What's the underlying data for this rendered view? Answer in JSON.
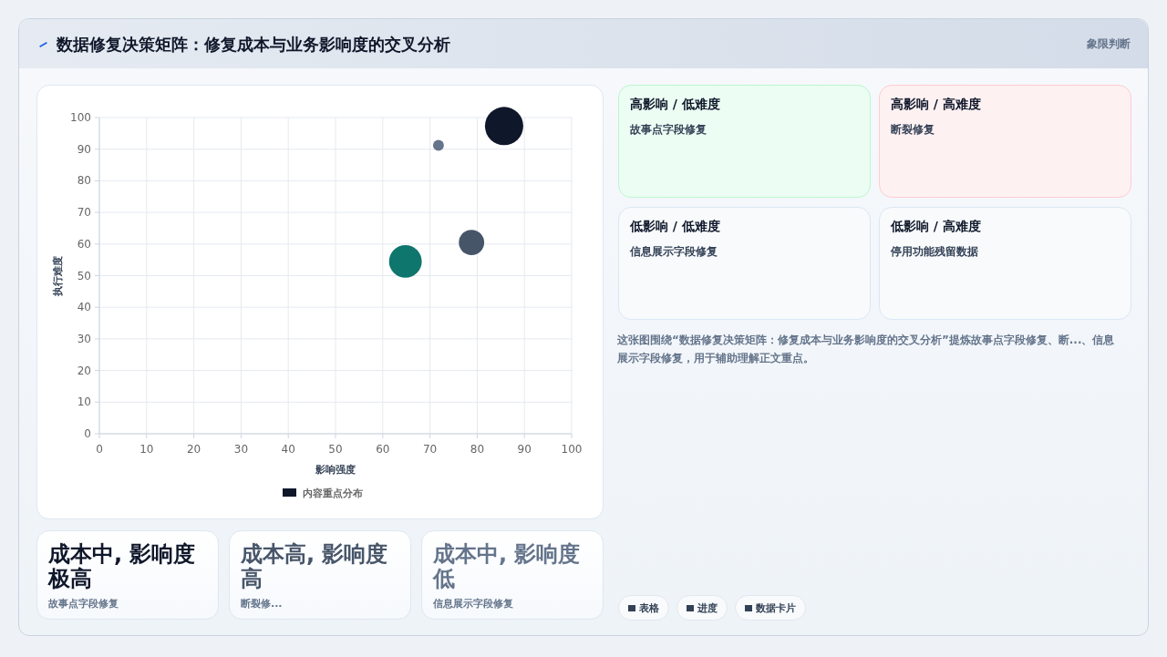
{
  "chart_data": [
    {
      "type": "bubble",
      "title": "数据修复决策矩阵：修复成本与业务影响度的交叉分析",
      "xlabel": "影响强度",
      "ylabel": "执行难度",
      "xlim": [
        0,
        100
      ],
      "ylim": [
        0,
        100
      ],
      "xticks": [
        0,
        10,
        20,
        30,
        40,
        50,
        60,
        70,
        80,
        90,
        100
      ],
      "yticks": [
        0,
        10,
        20,
        30,
        40,
        50,
        60,
        70,
        80,
        90,
        100
      ],
      "grid": true,
      "legend": "bottom",
      "series": [
        {
          "name": "内容重点分布",
          "x": [
            85.7,
            78.8,
            64.8,
            71.8
          ],
          "values": [
            97.3,
            60.5,
            54.5,
            91.2
          ],
          "sizes": [
            1,
            0.44,
            0.73,
            0.08
          ],
          "colors": [
            "#0f172a",
            "#475569",
            "#0f766e",
            "#64748b"
          ]
        }
      ]
    },
    {
      "type": "other",
      "title": "象限判断",
      "annotations": [
        "高影响 / 低难度",
        "故事点字段修复",
        "高影响 / 高难度",
        "断裂修复",
        "低影响 / 低难度",
        "信息展示字段修复",
        "低影响 / 高难度",
        "停用功能残留数据",
        "这张图围绕“数据修复决策矩阵：修复成本与业务影响度的交叉分析”提炼故事点字段修复、断...、信息展示字段修复，用于辅助理解正文重点。"
      ]
    },
    {
      "type": "other",
      "annotations": [
        "成本中, 影响度极高",
        "故事点字段修复",
        "成本高, 影响度高",
        "断裂修...",
        "成本中, 影响度低",
        "信息展示字段修复"
      ]
    },
    {
      "type": "other",
      "annotations": [
        "表格",
        "进度",
        "数据卡片"
      ]
    }
  ]
}
